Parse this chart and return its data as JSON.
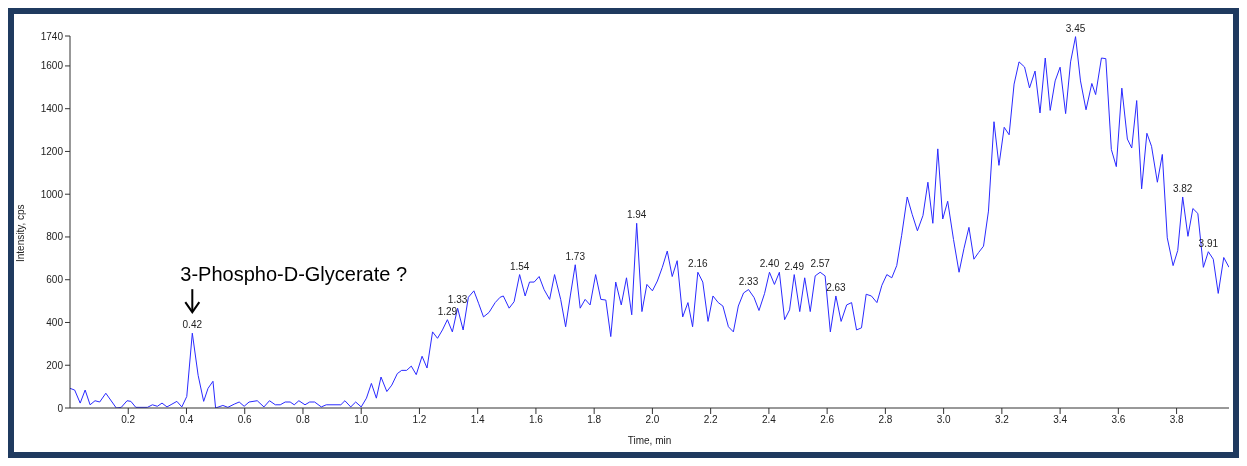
{
  "chart_data": {
    "type": "line",
    "xlabel": "Time, min",
    "ylabel": "Intensity, cps",
    "color": "#2a2aff",
    "marker": "none",
    "grid": false,
    "legend": false,
    "xlim": [
      0,
      3.98
    ],
    "ylim": [
      0,
      1740
    ],
    "xticks": [
      0.2,
      0.4,
      0.6,
      0.8,
      {
        "value": 1,
        "label": "1.0"
      },
      1.2,
      1.4,
      1.6,
      1.8,
      {
        "value": 2,
        "label": "2.0"
      },
      2.2,
      2.4,
      2.6,
      2.8,
      {
        "value": 3,
        "label": "3.0"
      },
      3.2,
      3.4,
      3.6,
      3.8
    ],
    "yticks": [
      0,
      200,
      400,
      600,
      800,
      1000,
      1200,
      1400,
      1600,
      1740
    ],
    "x": [
      0,
      0.016,
      0.035,
      0.052,
      0.069,
      0.086,
      0.102,
      0.123,
      0.159,
      0.176,
      0.196,
      0.209,
      0.226,
      0.266,
      0.283,
      0.3,
      0.316,
      0.333,
      0.35,
      0.367,
      0.384,
      0.401,
      0.42,
      0.44,
      0.459,
      0.474,
      0.491,
      0.5,
      0.525,
      0.542,
      0.564,
      0.581,
      0.598,
      0.615,
      0.643,
      0.666,
      0.685,
      0.705,
      0.722,
      0.739,
      0.756,
      0.77,
      0.786,
      0.807,
      0.823,
      0.84,
      0.863,
      0.88,
      0.93,
      0.944,
      0.964,
      0.981,
      1.0,
      1.018,
      1.035,
      1.052,
      1.068,
      1.088,
      1.105,
      1.124,
      1.139,
      1.156,
      1.172,
      1.189,
      1.209,
      1.226,
      1.245,
      1.262,
      1.279,
      1.296,
      1.313,
      1.331,
      1.35,
      1.368,
      1.387,
      1.403,
      1.42,
      1.439,
      1.46,
      1.477,
      1.488,
      1.508,
      1.525,
      1.544,
      1.563,
      1.578,
      1.594,
      1.611,
      1.628,
      1.647,
      1.664,
      1.685,
      1.702,
      1.718,
      1.735,
      1.752,
      1.769,
      1.786,
      1.805,
      1.823,
      1.84,
      1.857,
      1.874,
      1.893,
      1.911,
      1.929,
      1.946,
      1.964,
      1.981,
      2.0,
      2.017,
      2.034,
      2.051,
      2.068,
      2.085,
      2.104,
      2.122,
      2.138,
      2.156,
      2.173,
      2.191,
      2.208,
      2.226,
      2.242,
      2.261,
      2.278,
      2.295,
      2.313,
      2.33,
      2.349,
      2.366,
      2.385,
      2.402,
      2.419,
      2.436,
      2.454,
      2.471,
      2.487,
      2.506,
      2.523,
      2.542,
      2.559,
      2.576,
      2.593,
      2.611,
      2.63,
      2.648,
      2.667,
      2.684,
      2.701,
      2.718,
      2.734,
      2.752,
      2.771,
      2.788,
      2.805,
      2.822,
      2.839,
      2.856,
      2.875,
      2.892,
      2.91,
      2.929,
      2.946,
      2.963,
      2.98,
      2.997,
      3.014,
      3.034,
      3.053,
      3.07,
      3.087,
      3.104,
      3.12,
      3.137,
      3.154,
      3.173,
      3.19,
      3.208,
      3.225,
      3.242,
      3.259,
      3.278,
      3.295,
      3.314,
      3.331,
      3.349,
      3.366,
      3.383,
      3.4,
      3.419,
      3.436,
      3.453,
      3.47,
      3.489,
      3.509,
      3.522,
      3.542,
      3.557,
      3.576,
      3.593,
      3.612,
      3.631,
      3.646,
      3.663,
      3.68,
      3.698,
      3.714,
      3.734,
      3.751,
      3.768,
      3.788,
      3.804,
      3.821,
      3.839,
      3.856,
      3.873,
      3.892,
      3.909,
      3.926,
      3.943,
      3.962,
      3.98
    ],
    "values": [
      92,
      84,
      23,
      84,
      15,
      34,
      28,
      69,
      0,
      3,
      34,
      31,
      3,
      3,
      15,
      8,
      23,
      5,
      18,
      31,
      5,
      54,
      350,
      153,
      31,
      92,
      125,
      0,
      12,
      3,
      18,
      28,
      8,
      28,
      34,
      5,
      34,
      15,
      15,
      28,
      28,
      15,
      34,
      15,
      28,
      28,
      5,
      15,
      15,
      34,
      5,
      28,
      5,
      46,
      115,
      46,
      145,
      77,
      107,
      161,
      176,
      176,
      196,
      156,
      242,
      187,
      356,
      326,
      365,
      413,
      356,
      467,
      365,
      518,
      548,
      490,
      426,
      447,
      493,
      518,
      524,
      467,
      497,
      624,
      524,
      589,
      589,
      615,
      554,
      508,
      624,
      508,
      380,
      524,
      670,
      467,
      508,
      482,
      624,
      508,
      505,
      334,
      589,
      482,
      609,
      436,
      864,
      451,
      578,
      548,
      594,
      658,
      734,
      615,
      689,
      426,
      493,
      380,
      635,
      589,
      405,
      524,
      493,
      477,
      380,
      356,
      477,
      538,
      554,
      517,
      456,
      535,
      635,
      578,
      635,
      413,
      459,
      624,
      451,
      609,
      451,
      618,
      635,
      618,
      356,
      524,
      405,
      482,
      493,
      365,
      375,
      532,
      524,
      493,
      574,
      624,
      609,
      666,
      808,
      987,
      906,
      829,
      900,
      1056,
      864,
      1212,
      884,
      967,
      788,
      635,
      747,
      845,
      696,
      727,
      757,
      921,
      1339,
      1135,
      1313,
      1278,
      1515,
      1619,
      1595,
      1497,
      1576,
      1380,
      1637,
      1392,
      1530,
      1594,
      1377,
      1619,
      1737,
      1530,
      1395,
      1518,
      1466,
      1637,
      1634,
      1209,
      1129,
      1496,
      1258,
      1216,
      1438,
      1025,
      1285,
      1224,
      1056,
      1186,
      796,
      666,
      737,
      987,
      803,
      933,
      910,
      658,
      731,
      696,
      536,
      704,
      658
    ],
    "annotations": [
      {
        "text": "3-Phospho-D-Glycerate ?",
        "x": 0.42,
        "y": 350
      },
      {
        "text": "0.42",
        "x": 0.42,
        "y": 350
      },
      {
        "text": "1.29",
        "x": 1.296,
        "y": 413
      },
      {
        "text": "1.33",
        "x": 1.331,
        "y": 467
      },
      {
        "text": "1.54",
        "x": 1.544,
        "y": 624
      },
      {
        "text": "1.73",
        "x": 1.735,
        "y": 670
      },
      {
        "text": "1.94",
        "x": 1.946,
        "y": 864
      },
      {
        "text": "2.16",
        "x": 2.156,
        "y": 635
      },
      {
        "text": "2.33",
        "x": 2.33,
        "y": 554
      },
      {
        "text": "2.40",
        "x": 2.402,
        "y": 635
      },
      {
        "text": "2.49",
        "x": 2.487,
        "y": 624
      },
      {
        "text": "2.57",
        "x": 2.576,
        "y": 635
      },
      {
        "text": "2.63",
        "x": 2.63,
        "y": 524
      },
      {
        "text": "3.45",
        "x": 3.453,
        "y": 1737
      },
      {
        "text": "3.82",
        "x": 3.821,
        "y": 987
      },
      {
        "text": "3.91",
        "x": 3.909,
        "y": 731
      }
    ]
  }
}
